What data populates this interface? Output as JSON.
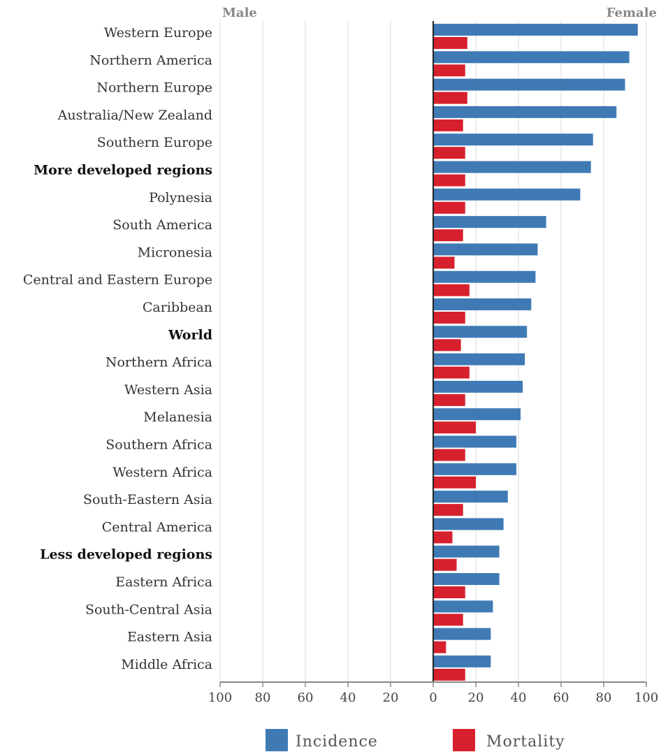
{
  "header": {
    "left_label": "Male",
    "right_label": "Female"
  },
  "chart_data": {
    "type": "bar",
    "orientation": "horizontal",
    "layout": "population-pyramid",
    "categories": [
      "Western Europe",
      "Northern America",
      "Northern Europe",
      "Australia/New Zealand",
      "Southern Europe",
      "More developed regions",
      "Polynesia",
      "South America",
      "Micronesia",
      "Central and Eastern Europe",
      "Caribbean",
      "World",
      "Northern Africa",
      "Western Asia",
      "Melanesia",
      "Southern Africa",
      "Western Africa",
      "South-Eastern Asia",
      "Central America",
      "Less developed regions",
      "Eastern Africa",
      "South-Central Asia",
      "Eastern Asia",
      "Middle Africa"
    ],
    "bold_categories": [
      "More developed regions",
      "World",
      "Less developed regions"
    ],
    "series": [
      {
        "name": "Incidence",
        "color": "#3f7ab5",
        "side": "Female",
        "values": [
          96,
          92,
          90,
          86,
          75,
          74,
          69,
          53,
          49,
          48,
          46,
          44,
          43,
          42,
          41,
          39,
          39,
          35,
          33,
          31,
          31,
          28,
          27,
          27
        ]
      },
      {
        "name": "Mortality",
        "color": "#d7202d",
        "side": "Female",
        "values": [
          16,
          15,
          16,
          14,
          15,
          15,
          15,
          14,
          10,
          17,
          15,
          13,
          17,
          15,
          20,
          15,
          20,
          14,
          9,
          11,
          15,
          14,
          6,
          15
        ]
      }
    ],
    "x_ticks": [
      "100",
      "80",
      "60",
      "40",
      "20",
      "0",
      "20",
      "40",
      "60",
      "80",
      "100"
    ],
    "xlim": [
      -100,
      100
    ],
    "grid": true,
    "legend": {
      "position": "bottom",
      "items": [
        "Incidence",
        "Mortality"
      ]
    }
  }
}
